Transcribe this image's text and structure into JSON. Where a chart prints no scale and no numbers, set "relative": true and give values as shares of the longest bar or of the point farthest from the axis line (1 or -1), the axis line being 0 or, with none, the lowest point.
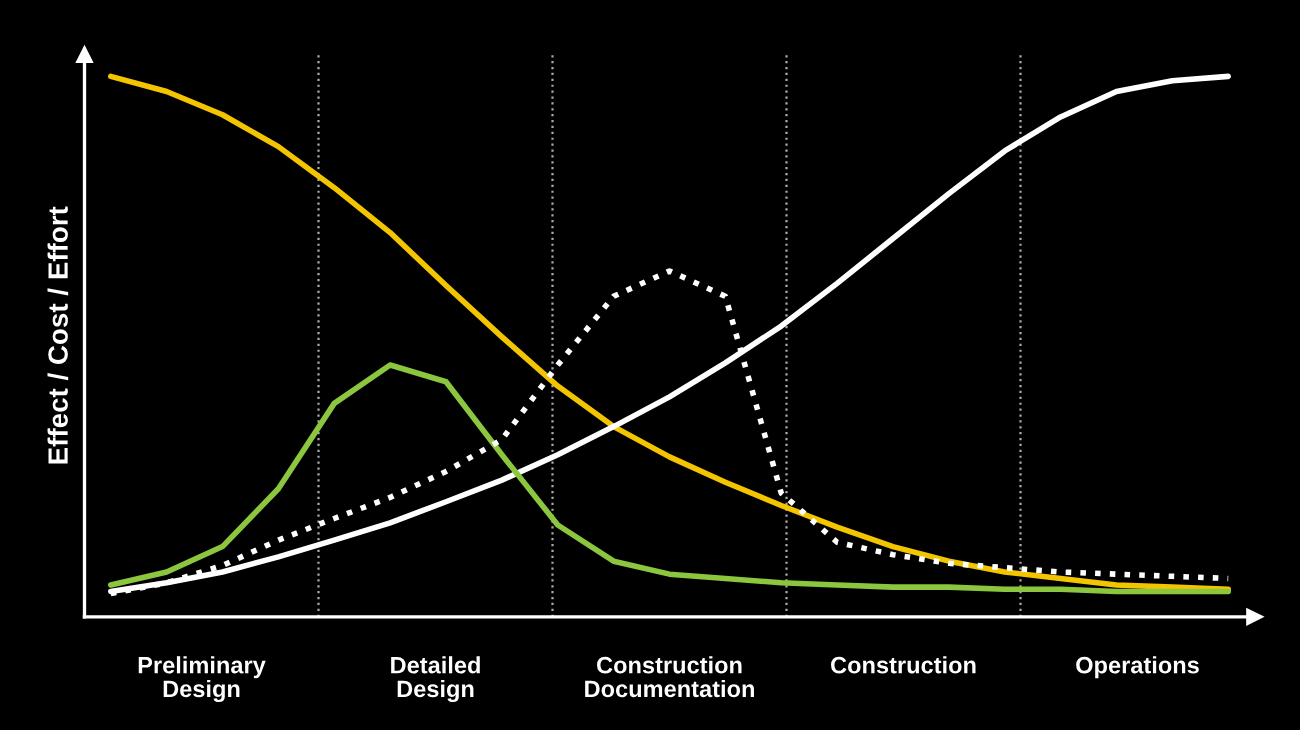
{
  "chart_data": {
    "type": "line",
    "relative": true,
    "ylabel": "Effect / Cost / Effort",
    "categories": [
      null,
      null,
      null,
      null,
      null,
      null,
      null,
      null,
      null,
      null,
      null,
      null,
      null,
      null,
      null,
      null,
      null,
      null,
      null,
      null,
      null
    ],
    "annotations": [
      "Preliminary\nDesign",
      "Detailed\nDesign",
      "Construction\nDocumentation",
      "Construction",
      "Operations"
    ],
    "grid": false,
    "series": [
      {
        "color": "#f2c500",
        "line_style": "solid",
        "values": [
          1.0,
          0.972,
          0.929,
          0.87,
          0.794,
          0.711,
          0.613,
          0.518,
          0.427,
          0.352,
          0.296,
          0.249,
          0.206,
          0.166,
          0.13,
          0.103,
          0.083,
          0.071,
          0.059,
          0.055,
          0.051
        ]
      },
      {
        "color": "#ffffff",
        "line_style": "solid",
        "values": [
          0.047,
          0.063,
          0.083,
          0.111,
          0.142,
          0.174,
          0.213,
          0.253,
          0.3,
          0.352,
          0.407,
          0.47,
          0.538,
          0.617,
          0.7,
          0.783,
          0.862,
          0.925,
          0.972,
          0.992,
          1.0
        ]
      },
      {
        "color": "#8cc63f",
        "line_style": "solid",
        "values": [
          0.059,
          0.083,
          0.13,
          0.237,
          0.395,
          0.466,
          0.435,
          0.3,
          0.17,
          0.103,
          0.079,
          0.071,
          0.063,
          0.059,
          0.055,
          0.055,
          0.051,
          0.051,
          0.047,
          0.047,
          0.047
        ]
      },
      {
        "color": "#ffffff",
        "line_style": "dotted",
        "values": [
          0.043,
          0.063,
          0.095,
          0.142,
          0.182,
          0.221,
          0.269,
          0.328,
          0.466,
          0.593,
          0.64,
          0.593,
          0.229,
          0.138,
          0.115,
          0.099,
          0.091,
          0.083,
          0.079,
          0.075,
          0.071
        ]
      }
    ]
  }
}
